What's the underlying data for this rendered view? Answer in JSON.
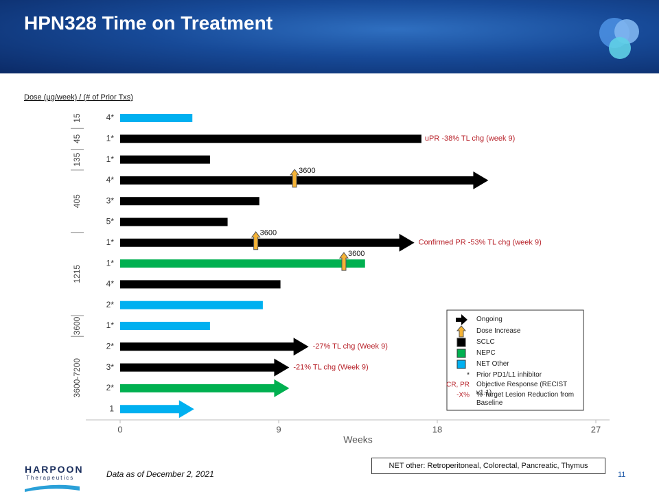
{
  "chart_data": {
    "type": "bar",
    "orientation": "horizontal",
    "title": "HPN328 Time on Treatment",
    "y_axis_label": "Dose (µg/week) / (# of Prior Txs)",
    "x_axis_label": "Weeks",
    "xlim": [
      0,
      27
    ],
    "xticks": [
      0,
      9,
      18,
      27
    ],
    "categories": [
      "4*",
      "1*",
      "1*",
      "4*",
      "3*",
      "5*",
      "1*",
      "1*",
      "4*",
      "2*",
      "1*",
      "2*",
      "3*",
      "2*",
      "1"
    ],
    "values": [
      4.1,
      17.1,
      5.1,
      20.9,
      7.9,
      6.1,
      16.7,
      13.9,
      9.1,
      8.1,
      5.1,
      10.7,
      9.6,
      9.6,
      4.2
    ],
    "kinds": [
      4,
      2,
      2,
      2,
      2,
      2,
      2,
      3,
      2,
      4,
      4,
      2,
      2,
      3,
      4
    ],
    "ongoing": [
      false,
      false,
      false,
      true,
      false,
      false,
      true,
      false,
      false,
      false,
      false,
      true,
      true,
      true,
      true
    ],
    "dose_groups": [
      {
        "label": "15",
        "rows": 1
      },
      {
        "label": "45",
        "rows": 1
      },
      {
        "label": "135",
        "rows": 1
      },
      {
        "label": "405",
        "rows": 3
      },
      {
        "label": "1215",
        "rows": 4
      },
      {
        "label": "3600",
        "rows": 1
      },
      {
        "label": "3600-7200",
        "rows": 4
      }
    ],
    "dose_increases": [
      {
        "row": 3,
        "value": 9.9,
        "label": "3600"
      },
      {
        "row": 6,
        "value": 7.7,
        "label": "3600"
      },
      {
        "row": 7,
        "value": 12.7,
        "label": "3600"
      }
    ],
    "annotations": [
      {
        "row": 1,
        "text": "uPR  -38% TL chg (week 9)"
      },
      {
        "row": 6,
        "text": "Confirmed PR  -53% TL chg (week 9)"
      },
      {
        "row": 11,
        "text": "-27% TL chg  (Week 9)"
      },
      {
        "row": 12,
        "text": "-21% TL chg (Week 9)"
      }
    ],
    "legend": [
      {
        "symbol": "arrow",
        "color": "#000000",
        "text": "Ongoing"
      },
      {
        "symbol": "up-arrow",
        "color": "#f5b335",
        "text": "Dose Increase"
      },
      {
        "symbol": "box",
        "color": "#000000",
        "text": "SCLC"
      },
      {
        "symbol": "box",
        "color": "#00b050",
        "text": "NEPC"
      },
      {
        "symbol": "box",
        "color": "#00b0f0",
        "text": "NET Other"
      },
      {
        "symbol_text": "*",
        "text": "Prior PD1/L1 inhibitor"
      },
      {
        "symbol_text": "CR, PR",
        "text": "Objective Response (RECIST v1.1)"
      },
      {
        "symbol_text": "-X%",
        "text": "% Target Lesion Reduction from Baseline"
      }
    ]
  },
  "footer": {
    "note": "NET other: Retroperitoneal, Colorectal, Pancreatic, Thymus",
    "date": "Data as of December 2, 2021",
    "page": "11",
    "logo": "HARPOON",
    "logo_sub": "Therapeutics"
  }
}
